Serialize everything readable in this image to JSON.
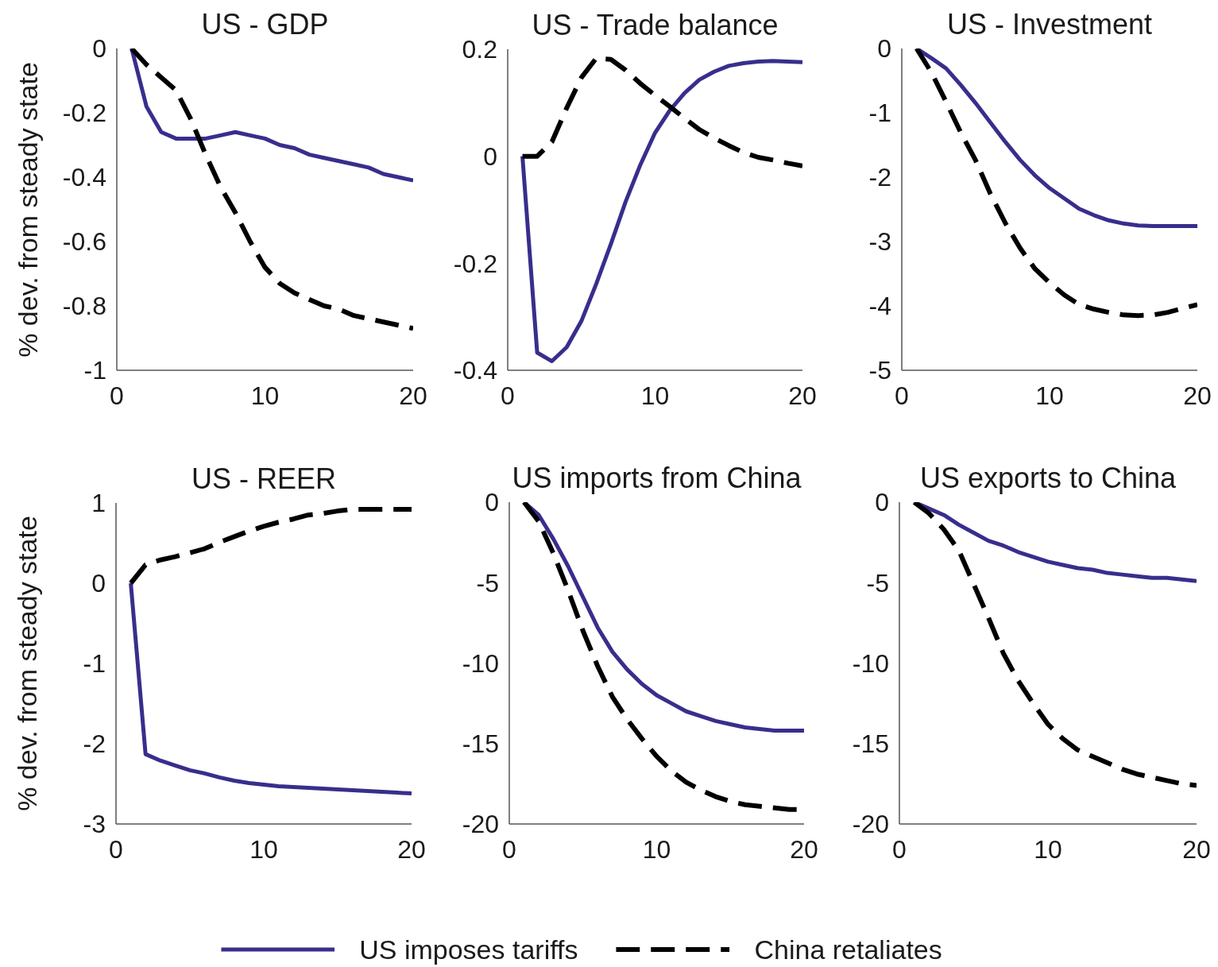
{
  "chart_data": [
    {
      "type": "line",
      "title": "US - GDP",
      "ylabel": "% dev. from steady state",
      "x": [
        1,
        2,
        3,
        4,
        5,
        6,
        7,
        8,
        9,
        10,
        11,
        12,
        13,
        14,
        15,
        16,
        17,
        18,
        19,
        20
      ],
      "xlim": [
        0,
        20
      ],
      "xticks": [
        0,
        10,
        20
      ],
      "ylim": [
        -1,
        0
      ],
      "yticks": [
        -1,
        -0.8,
        -0.6,
        -0.4,
        -0.2,
        0
      ],
      "series": [
        {
          "color": "#382e8c",
          "line_style": "solid",
          "values": [
            0,
            -0.18,
            -0.26,
            -0.28,
            -0.28,
            -0.28,
            -0.27,
            -0.26,
            -0.27,
            -0.28,
            -0.3,
            -0.31,
            -0.33,
            -0.34,
            -0.35,
            -0.36,
            -0.37,
            -0.39,
            -0.4,
            -0.41
          ]
        },
        {
          "color": "#000000",
          "line_style": "dashed",
          "values": [
            0,
            -0.05,
            -0.09,
            -0.13,
            -0.22,
            -0.33,
            -0.43,
            -0.51,
            -0.6,
            -0.68,
            -0.73,
            -0.76,
            -0.78,
            -0.8,
            -0.81,
            -0.83,
            -0.84,
            -0.85,
            -0.86,
            -0.87
          ]
        }
      ]
    },
    {
      "type": "line",
      "title": "US - Trade balance",
      "x": [
        1,
        2,
        3,
        4,
        5,
        6,
        7,
        8,
        9,
        10,
        11,
        12,
        13,
        14,
        15,
        16,
        17,
        18,
        19,
        20
      ],
      "xlim": [
        0,
        20
      ],
      "xticks": [
        0,
        10,
        20
      ],
      "ylim": [
        -0.4,
        0.2
      ],
      "yticks": [
        -0.4,
        -0.2,
        0,
        0.2
      ],
      "series": [
        {
          "color": "#382e8c",
          "line_style": "solid",
          "values": [
            0,
            -0.367,
            -0.383,
            -0.357,
            -0.308,
            -0.239,
            -0.164,
            -0.085,
            -0.016,
            0.044,
            0.086,
            0.118,
            0.143,
            0.158,
            0.169,
            0.174,
            0.177,
            0.178,
            0.177,
            0.176
          ]
        },
        {
          "color": "#000000",
          "line_style": "dashed",
          "values": [
            0,
            0,
            0.027,
            0.09,
            0.147,
            0.183,
            0.181,
            0.161,
            0.136,
            0.114,
            0.093,
            0.071,
            0.05,
            0.034,
            0.02,
            0.007,
            -0.002,
            -0.007,
            -0.013,
            -0.018
          ]
        }
      ]
    },
    {
      "type": "line",
      "title": "US - Investment",
      "x": [
        1,
        2,
        3,
        4,
        5,
        6,
        7,
        8,
        9,
        10,
        11,
        12,
        13,
        14,
        15,
        16,
        17,
        18,
        19,
        20
      ],
      "xlim": [
        0,
        20
      ],
      "xticks": [
        0,
        10,
        20
      ],
      "ylim": [
        -5,
        0
      ],
      "yticks": [
        -5,
        -4,
        -3,
        -2,
        -1,
        0
      ],
      "series": [
        {
          "color": "#382e8c",
          "line_style": "solid",
          "values": [
            0,
            -0.15,
            -0.31,
            -0.57,
            -0.85,
            -1.15,
            -1.45,
            -1.73,
            -1.97,
            -2.17,
            -2.33,
            -2.49,
            -2.59,
            -2.67,
            -2.72,
            -2.75,
            -2.76,
            -2.76,
            -2.76,
            -2.76
          ]
        },
        {
          "color": "#000000",
          "line_style": "dashed",
          "values": [
            0,
            -0.37,
            -0.83,
            -1.31,
            -1.74,
            -2.26,
            -2.71,
            -3.1,
            -3.42,
            -3.64,
            -3.83,
            -3.98,
            -4.05,
            -4.1,
            -4.14,
            -4.15,
            -4.14,
            -4.1,
            -4.04,
            -3.98
          ]
        }
      ]
    },
    {
      "type": "line",
      "title": "US - REER",
      "ylabel": "% dev. from steady state",
      "x": [
        1,
        2,
        3,
        4,
        5,
        6,
        7,
        8,
        9,
        10,
        11,
        12,
        13,
        14,
        15,
        16,
        17,
        18,
        19,
        20
      ],
      "xlim": [
        0,
        20
      ],
      "xticks": [
        0,
        10,
        20
      ],
      "ylim": [
        -3,
        1
      ],
      "yticks": [
        -3,
        -2,
        -1,
        0,
        1
      ],
      "series": [
        {
          "color": "#382e8c",
          "line_style": "solid",
          "values": [
            0,
            -2.13,
            -2.21,
            -2.27,
            -2.33,
            -2.37,
            -2.42,
            -2.46,
            -2.49,
            -2.51,
            -2.53,
            -2.54,
            -2.55,
            -2.56,
            -2.57,
            -2.58,
            -2.59,
            -2.6,
            -2.61,
            -2.62
          ]
        },
        {
          "color": "#000000",
          "line_style": "dashed",
          "values": [
            0,
            0.23,
            0.29,
            0.33,
            0.38,
            0.43,
            0.51,
            0.58,
            0.65,
            0.71,
            0.76,
            0.8,
            0.85,
            0.87,
            0.9,
            0.92,
            0.92,
            0.92,
            0.92,
            0.92
          ]
        }
      ]
    },
    {
      "type": "line",
      "title": "US imports from China",
      "legend": "bottom",
      "x": [
        1,
        2,
        3,
        4,
        5,
        6,
        7,
        8,
        9,
        10,
        11,
        12,
        13,
        14,
        15,
        16,
        17,
        18,
        19,
        20
      ],
      "xlim": [
        0,
        20
      ],
      "xticks": [
        0,
        10,
        20
      ],
      "ylim": [
        -20,
        0
      ],
      "yticks": [
        -20,
        -15,
        -10,
        -5,
        0
      ],
      "series": [
        {
          "name": "US imposes tariffs",
          "color": "#382e8c",
          "line_style": "solid",
          "values": [
            0,
            -0.8,
            -2.3,
            -4.0,
            -5.9,
            -7.8,
            -9.3,
            -10.4,
            -11.3,
            -12.0,
            -12.5,
            -13.0,
            -13.3,
            -13.6,
            -13.8,
            -14.0,
            -14.1,
            -14.2,
            -14.2,
            -14.2
          ]
        },
        {
          "name": "China retaliates",
          "color": "#000000",
          "line_style": "dashed",
          "values": [
            0,
            -1.2,
            -3.2,
            -5.5,
            -8.0,
            -10.2,
            -12.1,
            -13.5,
            -14.7,
            -15.8,
            -16.7,
            -17.4,
            -17.9,
            -18.3,
            -18.6,
            -18.8,
            -18.9,
            -19.0,
            -19.1,
            -19.1
          ]
        }
      ]
    },
    {
      "type": "line",
      "title": "US exports to China",
      "x": [
        1,
        2,
        3,
        4,
        5,
        6,
        7,
        8,
        9,
        10,
        11,
        12,
        13,
        14,
        15,
        16,
        17,
        18,
        19,
        20
      ],
      "xlim": [
        0,
        20
      ],
      "xticks": [
        0,
        10,
        20
      ],
      "ylim": [
        -20,
        0
      ],
      "yticks": [
        -20,
        -15,
        -10,
        -5,
        0
      ],
      "series": [
        {
          "color": "#382e8c",
          "line_style": "solid",
          "values": [
            0,
            -0.4,
            -0.8,
            -1.4,
            -1.9,
            -2.4,
            -2.7,
            -3.1,
            -3.4,
            -3.7,
            -3.9,
            -4.1,
            -4.2,
            -4.4,
            -4.5,
            -4.6,
            -4.7,
            -4.7,
            -4.8,
            -4.9
          ]
        },
        {
          "color": "#000000",
          "line_style": "dashed",
          "values": [
            0,
            -0.7,
            -1.7,
            -3.0,
            -5.1,
            -7.2,
            -9.4,
            -11.1,
            -12.5,
            -13.8,
            -14.7,
            -15.4,
            -15.8,
            -16.2,
            -16.6,
            -16.9,
            -17.1,
            -17.3,
            -17.5,
            -17.6
          ]
        }
      ]
    }
  ]
}
